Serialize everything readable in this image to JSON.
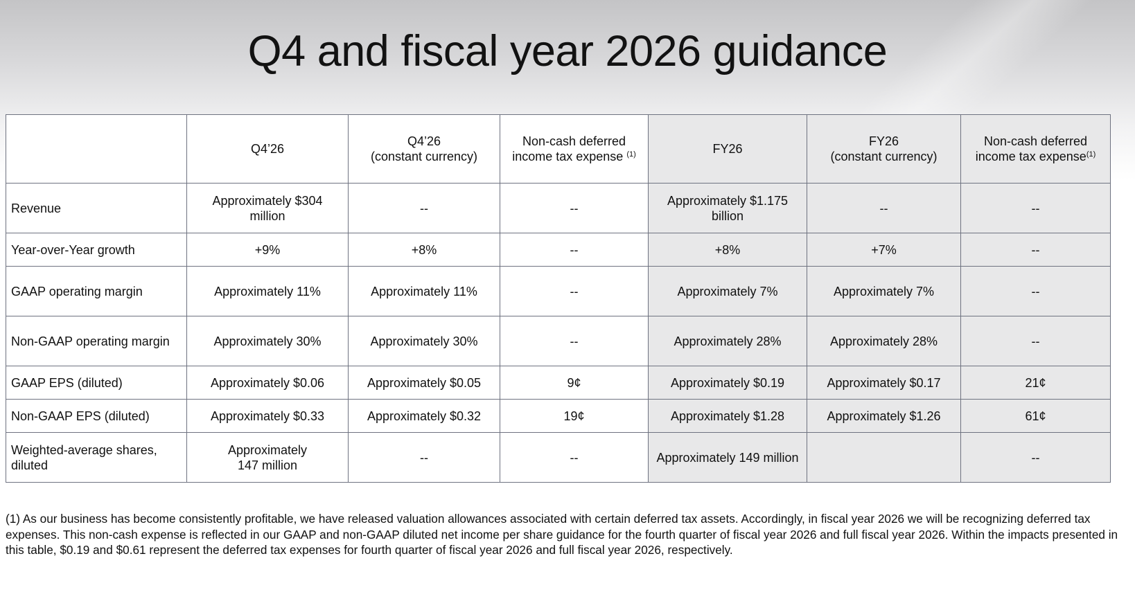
{
  "title": "Q4 and fiscal year 2026 guidance",
  "table": {
    "headers": [
      {
        "line1": "",
        "line2": "",
        "sup": ""
      },
      {
        "line1": "Q4’26",
        "line2": "",
        "sup": ""
      },
      {
        "line1": "Q4’26",
        "line2": "(constant currency)",
        "sup": ""
      },
      {
        "line1": "Non-cash deferred",
        "line2": "income tax expense",
        "sup": "(1)"
      },
      {
        "line1": "FY26",
        "line2": "",
        "sup": ""
      },
      {
        "line1": "FY26",
        "line2": "(constant currency)",
        "sup": ""
      },
      {
        "line1": "Non-cash deferred",
        "line2": "income tax expense",
        "sup": "(1)"
      }
    ],
    "rows": [
      {
        "label": "Revenue",
        "cells": [
          "Approximately $304 million",
          "--",
          "--",
          "Approximately $1.175 billion",
          "--",
          "--"
        ]
      },
      {
        "label": "Year-over-Year growth",
        "cells": [
          "+9%",
          "+8%",
          "--",
          "+8%",
          "+7%",
          "--"
        ]
      },
      {
        "label": "GAAP operating margin",
        "cells": [
          "Approximately 11%",
          "Approximately 11%",
          "--",
          "Approximately 7%",
          "Approximately 7%",
          "--"
        ]
      },
      {
        "label": "Non-GAAP operating margin",
        "cells": [
          "Approximately 30%",
          "Approximately 30%",
          "--",
          "Approximately 28%",
          "Approximately 28%",
          "--"
        ]
      },
      {
        "label": "GAAP EPS (diluted)",
        "cells": [
          "Approximately $0.06",
          "Approximately $0.05",
          "9¢",
          "Approximately $0.19",
          "Approximately $0.17",
          "21¢"
        ]
      },
      {
        "label": "Non-GAAP EPS (diluted)",
        "cells": [
          "Approximately $0.33",
          "Approximately $0.32",
          "19¢",
          "Approximately $1.28",
          "Approximately $1.26",
          "61¢"
        ]
      },
      {
        "label": "Weighted-average shares, diluted",
        "cells": [
          "Approximately 147 million",
          "--",
          "--",
          "Approximately 149 million",
          "",
          "--"
        ]
      }
    ]
  },
  "footnote": "(1) As our business has become consistently profitable, we have released valuation allowances associated with certain deferred tax assets. Accordingly, in fiscal year 2026 we will be recognizing deferred tax expenses. This non-cash expense is reflected in our GAAP and non-GAAP diluted net income per share guidance for the fourth quarter of fiscal year 2026 and full fiscal year 2026. Within the impacts presented in this table, $0.19 and $0.61 represent the deferred tax expenses for fourth quarter of fiscal year 2026 and full fiscal year 2026, respectively."
}
